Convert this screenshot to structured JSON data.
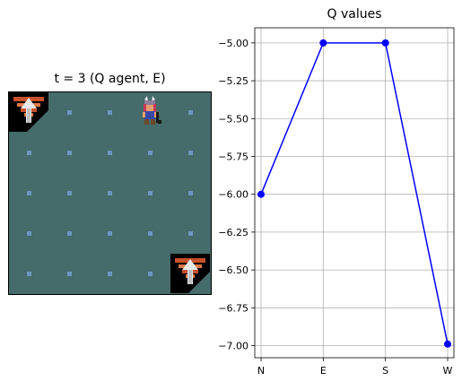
{
  "game": {
    "title": "t = 3 (Q agent, E)",
    "grid_cols": 5,
    "grid_rows": 5,
    "agent": {
      "col": 3,
      "row": 0
    },
    "stairs": [
      {
        "col": 0,
        "row": 0
      },
      {
        "col": 4,
        "row": 4
      }
    ],
    "colors": {
      "floor": "#456b6a",
      "dot": "#6f95c2"
    }
  },
  "chart_data": {
    "type": "line",
    "title": "Q values",
    "categories": [
      "N",
      "E",
      "S",
      "W"
    ],
    "values": [
      -6.0,
      -5.0,
      -5.0,
      -6.99
    ],
    "ylim": [
      -7.08,
      -4.9
    ],
    "yticks": [
      -5.0,
      -5.25,
      -5.5,
      -5.75,
      -6.0,
      -6.25,
      -6.5,
      -6.75,
      -7.0
    ],
    "ytick_labels": [
      "−5.00",
      "−5.25",
      "−5.50",
      "−5.75",
      "−6.00",
      "−6.25",
      "−6.50",
      "−6.75",
      "−7.00"
    ],
    "grid": true,
    "color": "#0000ff"
  }
}
